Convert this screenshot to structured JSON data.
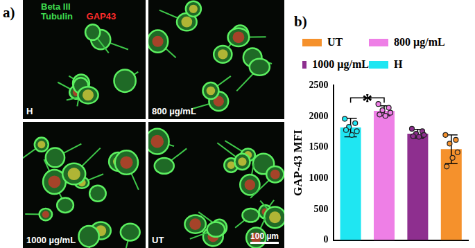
{
  "image_panel": {
    "panel_label": "a)",
    "stain_labels": [
      {
        "text": "Beta III Tubulin",
        "color": "#3fdc4f"
      },
      {
        "text": "GAP43",
        "color": "#ff2b2b"
      }
    ],
    "images": [
      {
        "label": "H"
      },
      {
        "label": "800 µg/mL"
      },
      {
        "label": "1000 µg/mL"
      },
      {
        "label": "UT",
        "scale_bar": "100 µm"
      }
    ]
  },
  "chart_data": {
    "type": "bar",
    "panel_label": "b)",
    "ylabel": "GAP-43 MFI",
    "categories": [
      null,
      null,
      null,
      null
    ],
    "series": [
      {
        "name": "UT",
        "color": "#f5912c",
        "values": [
          null,
          null,
          null,
          1470
        ],
        "errors": [
          null,
          null,
          null,
          230
        ],
        "points": [
          null,
          null,
          null,
          [
            1700,
            1620,
            1560,
            1420,
            1330,
            1190
          ]
        ]
      },
      {
        "name": "800 µg/mL",
        "color": "#ee7fe6",
        "values": [
          null,
          2090,
          null,
          null
        ],
        "errors": [
          null,
          80,
          null,
          null
        ],
        "points": [
          null,
          [
            2200,
            2140,
            2100,
            2060,
            2010,
            2030
          ],
          null,
          null
        ]
      },
      {
        "name": "1000 µg/mL",
        "color": "#8e2f8f",
        "values": [
          null,
          null,
          1720,
          null
        ],
        "errors": [
          null,
          null,
          70,
          null
        ],
        "points": [
          null,
          null,
          [
            1800,
            1760,
            1720,
            1700,
            1670,
            1680
          ],
          null
        ]
      },
      {
        "name": "H",
        "color": "#1fe6f2",
        "values": [
          1820,
          null,
          null,
          null
        ],
        "errors": [
          150,
          null,
          null,
          null
        ],
        "points": [
          [
            1960,
            1890,
            1830,
            1760,
            1700,
            1780
          ],
          null,
          null,
          null
        ]
      }
    ],
    "annotations": [
      {
        "text": "*",
        "between": [
          0,
          1
        ],
        "y": 2300
      }
    ],
    "ylim": [
      0,
      2500
    ],
    "yticks": [
      0,
      500,
      1000,
      1500,
      2000,
      2500
    ],
    "grid": false,
    "legend": "top",
    "tick_labels": "y"
  }
}
